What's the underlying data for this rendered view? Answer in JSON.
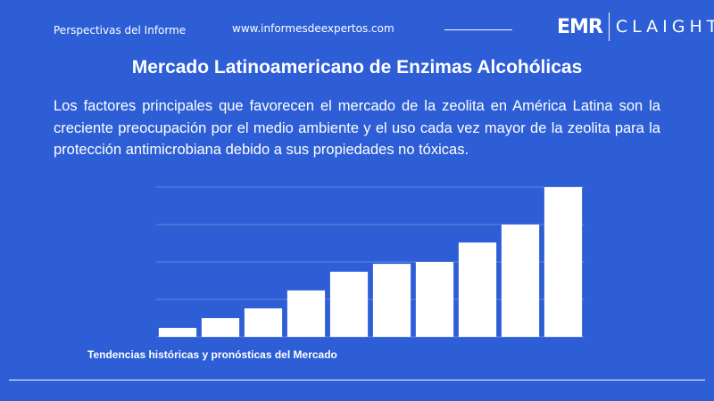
{
  "header": {
    "section": "Perspectivas del Informe",
    "website": "www.informesdeexpertos.com",
    "logo_left": "EMR",
    "logo_right": "CLAIGHT"
  },
  "description": "Los factores principales que favorecen el mercado de la zeolita en América Latina son la creciente preocupación por el medio ambiente y el uso cada vez mayor de la zeolita para la protección antimicrobiana debido a sus propiedades no tóxicas.",
  "chart_data": {
    "type": "bar",
    "title": "Mercado Latinoamericano de Enzimas Alcohólicas",
    "caption": "Tendencias históricas y pronósticas del Mercado",
    "categories": [
      null,
      null,
      null,
      null,
      null,
      null,
      null,
      null,
      null,
      null
    ],
    "values": [
      0.24,
      0.5,
      0.76,
      1.24,
      1.74,
      1.95,
      2.0,
      2.52,
      3.0,
      4.0
    ],
    "color": "#ffffff",
    "ylim": [
      0,
      4
    ],
    "yticks": [
      0,
      1,
      2,
      3,
      4
    ],
    "grid": true,
    "tick_labels": false
  }
}
